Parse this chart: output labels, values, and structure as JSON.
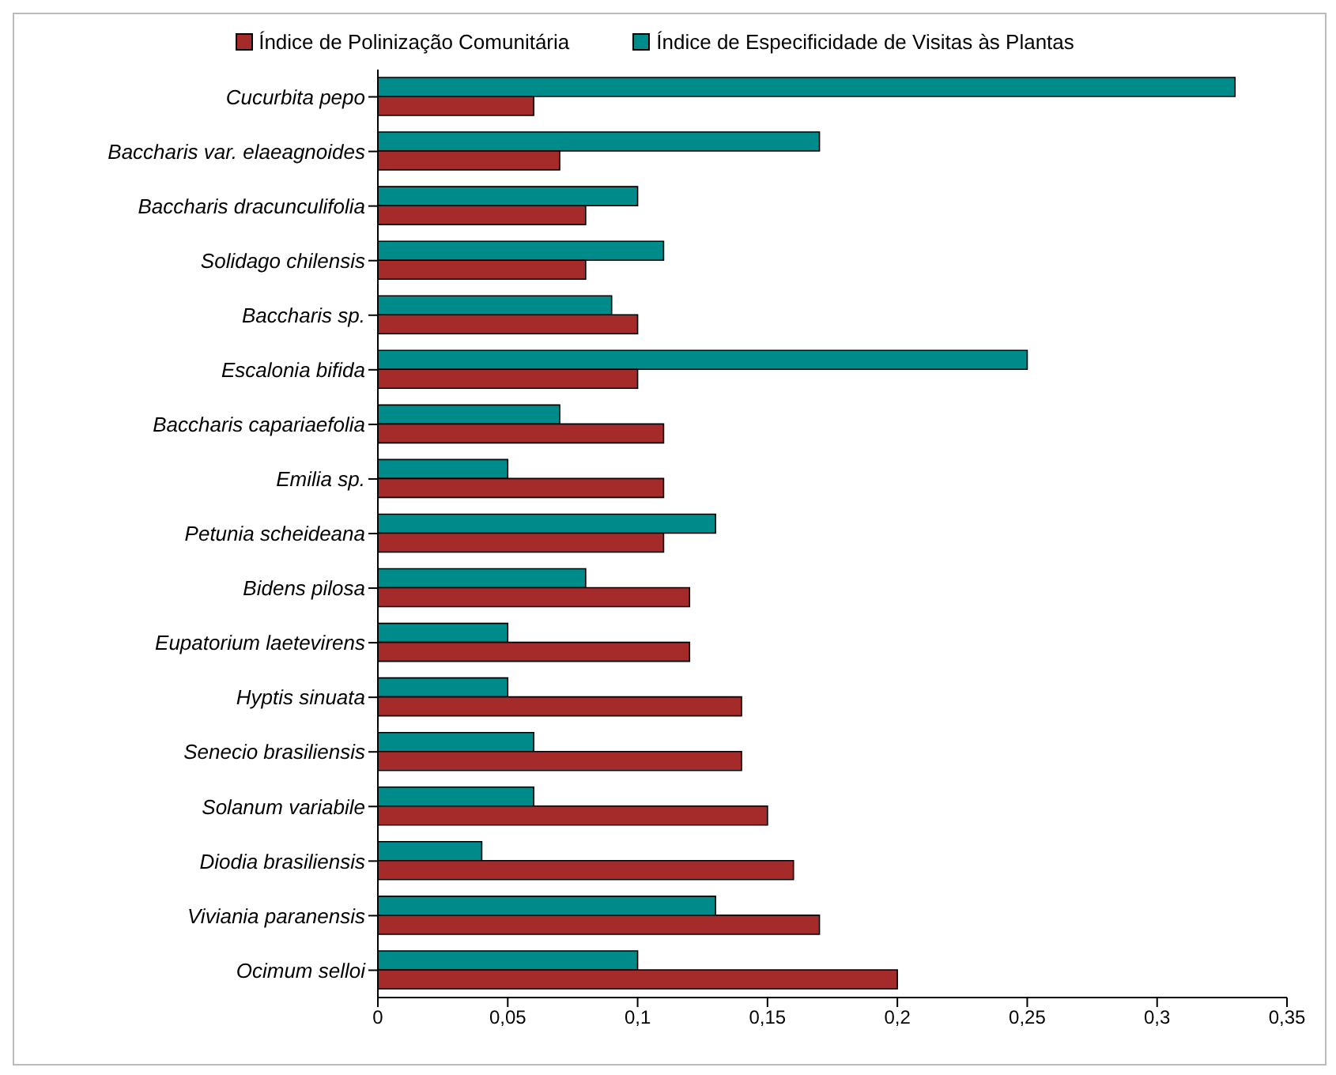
{
  "chart_data": {
    "type": "bar",
    "orientation": "horizontal",
    "categories": [
      "Cucurbita pepo",
      "Baccharis var. elaeagnoides",
      "Baccharis dracunculifolia",
      "Solidago chilensis",
      "Baccharis sp.",
      "Escalonia bifida",
      "Baccharis capariaefolia",
      "Emilia sp.",
      "Petunia scheideana",
      "Bidens pilosa",
      "Eupatorium laetevirens",
      "Hyptis sinuata",
      "Senecio brasiliensis",
      "Solanum variabile",
      "Diodia brasiliensis",
      "Viviania paranensis",
      "Ocimum selloi"
    ],
    "series": [
      {
        "name": "Índice de Polinização Comunitária",
        "color": "#a52a2a",
        "values": [
          0.06,
          0.07,
          0.08,
          0.08,
          0.1,
          0.1,
          0.11,
          0.11,
          0.11,
          0.12,
          0.12,
          0.14,
          0.14,
          0.15,
          0.16,
          0.17,
          0.2
        ]
      },
      {
        "name": "Índice de Especificidade de Visitas às Plantas",
        "color": "#008b8b",
        "values": [
          0.33,
          0.17,
          0.1,
          0.11,
          0.09,
          0.25,
          0.07,
          0.05,
          0.13,
          0.08,
          0.05,
          0.05,
          0.06,
          0.06,
          0.04,
          0.13,
          0.1
        ]
      }
    ],
    "xlim": [
      0,
      0.35
    ],
    "xticks": [
      0,
      {
        "value": 0.05,
        "label": "0,05"
      },
      {
        "value": 0.1,
        "label": "0,1"
      },
      {
        "value": 0.15,
        "label": "0,15"
      },
      {
        "value": 0.2,
        "label": "0,2"
      },
      {
        "value": 0.25,
        "label": "0,25"
      },
      {
        "value": 0.3,
        "label": "0,3"
      },
      {
        "value": 0.35,
        "label": "0,35"
      }
    ],
    "legend": "top"
  }
}
